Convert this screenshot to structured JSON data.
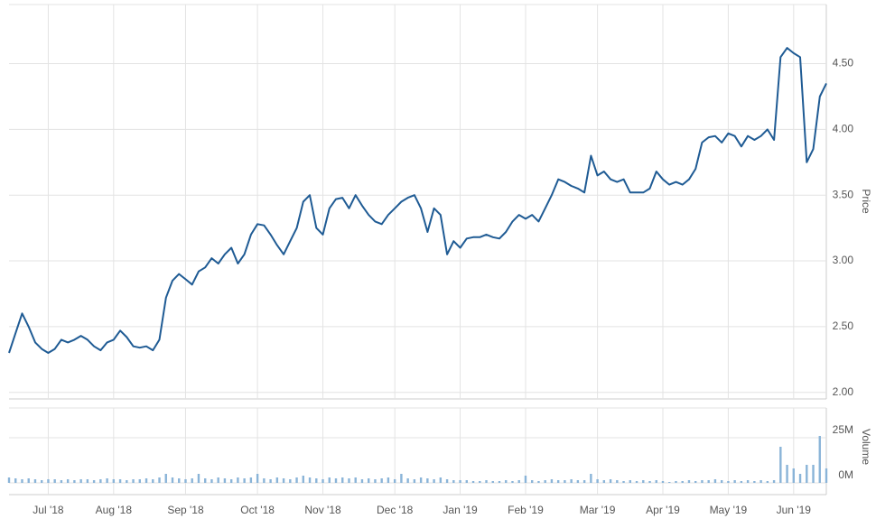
{
  "chart_data": {
    "type": "line",
    "categories": [
      null,
      null,
      null,
      null,
      null,
      null,
      "Jul '18",
      null,
      null,
      null,
      null,
      null,
      null,
      null,
      null,
      null,
      "Aug '18",
      null,
      null,
      null,
      null,
      null,
      null,
      null,
      null,
      null,
      null,
      "Sep '18",
      null,
      null,
      null,
      null,
      null,
      null,
      null,
      null,
      null,
      null,
      "Oct '18",
      null,
      null,
      null,
      null,
      null,
      null,
      null,
      null,
      null,
      "Nov '18",
      null,
      null,
      null,
      null,
      null,
      null,
      null,
      null,
      null,
      null,
      "Dec '18",
      null,
      null,
      null,
      null,
      null,
      null,
      null,
      null,
      null,
      "Jan '19",
      null,
      null,
      null,
      null,
      null,
      null,
      null,
      null,
      null,
      "Feb '19",
      null,
      null,
      null,
      null,
      null,
      null,
      null,
      null,
      null,
      null,
      "Mar '19",
      null,
      null,
      null,
      null,
      null,
      null,
      null,
      null,
      null,
      "Apr '19",
      null,
      null,
      null,
      null,
      null,
      null,
      null,
      null,
      null,
      "May '19",
      null,
      null,
      null,
      null,
      null,
      null,
      null,
      null,
      null,
      "Jun '19",
      null,
      null,
      null,
      null,
      null
    ],
    "series": [
      {
        "name": "Price",
        "color": "#1f5b94",
        "values": [
          2.3,
          2.45,
          2.6,
          2.5,
          2.38,
          2.33,
          2.3,
          2.33,
          2.4,
          2.38,
          2.4,
          2.43,
          2.4,
          2.35,
          2.32,
          2.38,
          2.4,
          2.47,
          2.42,
          2.35,
          2.34,
          2.35,
          2.32,
          2.4,
          2.72,
          2.85,
          2.9,
          2.86,
          2.82,
          2.92,
          2.95,
          3.02,
          2.98,
          3.05,
          3.1,
          2.98,
          3.05,
          3.2,
          3.28,
          3.27,
          3.2,
          3.12,
          3.05,
          3.15,
          3.25,
          3.45,
          3.5,
          3.25,
          3.2,
          3.4,
          3.47,
          3.48,
          3.4,
          3.5,
          3.42,
          3.35,
          3.3,
          3.28,
          3.35,
          3.4,
          3.45,
          3.48,
          3.5,
          3.4,
          3.22,
          3.4,
          3.35,
          3.05,
          3.15,
          3.1,
          3.17,
          3.18,
          3.18,
          3.2,
          3.18,
          3.17,
          3.22,
          3.3,
          3.35,
          3.32,
          3.35,
          3.3,
          3.4,
          3.5,
          3.62,
          3.6,
          3.57,
          3.55,
          3.52,
          3.8,
          3.65,
          3.68,
          3.62,
          3.6,
          3.62,
          3.52,
          3.52,
          3.52,
          3.55,
          3.68,
          3.62,
          3.58,
          3.6,
          3.58,
          3.62,
          3.7,
          3.9,
          3.94,
          3.95,
          3.9,
          3.97,
          3.95,
          3.87,
          3.95,
          3.92,
          3.95,
          4.0,
          3.92,
          4.55,
          4.62,
          4.58,
          4.55,
          3.75,
          3.85,
          4.25,
          4.35
        ]
      },
      {
        "name": "Volume",
        "color": "#8ab4d8",
        "axis": "y2",
        "values": [
          3,
          2.5,
          2,
          2.5,
          2,
          1.5,
          2,
          2,
          1.5,
          2,
          1.5,
          2,
          2,
          1.5,
          2,
          2.5,
          2,
          2,
          1.5,
          2,
          2,
          2.5,
          2,
          3,
          5,
          3,
          2.5,
          2,
          2.5,
          5,
          2.5,
          2,
          3,
          2.5,
          2,
          3,
          2.5,
          3,
          5,
          2.5,
          2,
          3,
          2.5,
          2,
          3,
          4,
          3,
          2.5,
          2,
          3,
          2.5,
          3,
          2.5,
          3,
          2,
          2.5,
          2,
          2.5,
          3,
          2,
          5,
          2.5,
          2,
          3,
          2.5,
          2,
          3,
          2,
          1.5,
          1.5,
          1.5,
          1,
          1,
          1.5,
          1,
          1,
          1.5,
          1,
          1.5,
          4,
          1.5,
          1,
          1.5,
          2,
          1.5,
          1.5,
          2,
          1.5,
          1.5,
          5,
          2,
          1.5,
          2,
          1.5,
          1,
          1.5,
          1,
          1.5,
          1,
          1.5,
          1,
          0.5,
          1,
          1,
          1.5,
          1,
          1.5,
          1.5,
          2,
          1.5,
          1,
          1.5,
          1,
          1.5,
          1,
          1.5,
          1,
          1.5,
          20,
          10,
          8,
          5,
          10,
          10,
          26,
          8
        ]
      }
    ],
    "ylabel": "Price",
    "y2label": "Volume",
    "ylim": [
      1.95,
      4.95
    ],
    "yticks": [
      {
        "value": 2,
        "label": "2.00"
      },
      {
        "value": 2.5,
        "label": "2.50"
      },
      {
        "value": 3,
        "label": "3.00"
      },
      {
        "value": 3.5,
        "label": "3.50"
      },
      {
        "value": 4,
        "label": "4.00"
      },
      {
        "value": 4.5,
        "label": "4.50"
      }
    ],
    "y2lim": [
      0,
      40
    ],
    "y2ticks": [
      {
        "value": 0,
        "label": "0M"
      },
      {
        "value": 25,
        "label": "25M"
      }
    ],
    "grid": true
  }
}
